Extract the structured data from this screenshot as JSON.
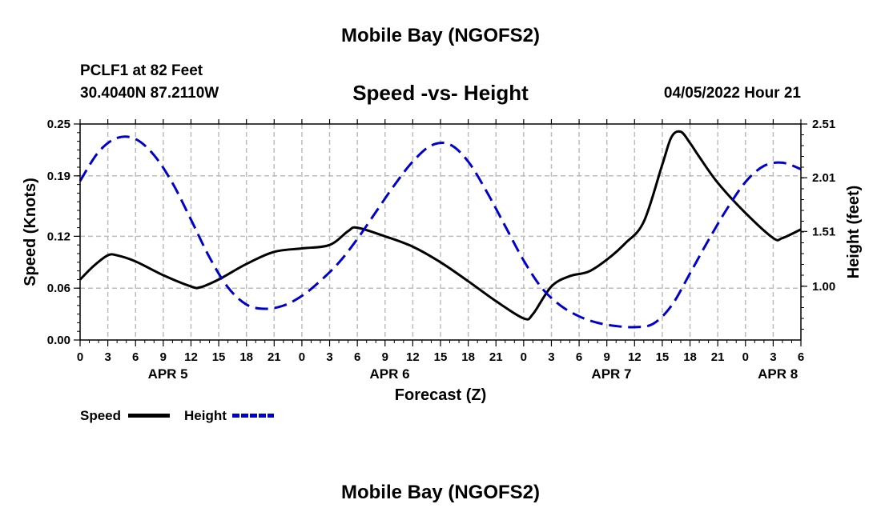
{
  "header": {
    "title": "Mobile Bay (NGOFS2)",
    "station": "PCLF1 at 82 Feet",
    "coords": "30.4040N  87.2110W",
    "subtitle": "Speed -vs- Height",
    "datetime": "04/05/2022 Hour 21",
    "footer_title": "Mobile Bay (NGOFS2)"
  },
  "legend": {
    "speed_label": "Speed",
    "height_label": "Height",
    "speed_color": "#000000",
    "height_color": "#0000cc"
  },
  "chart_data": {
    "type": "line",
    "title": "Speed -vs- Height",
    "xlabel": "Forecast (Z)",
    "ylabel": "Speed (Knots)",
    "y2label": "Height (feet)",
    "xlim": [
      0,
      78
    ],
    "ylim": [
      0,
      0.25
    ],
    "y2lim": [
      0.5,
      2.51
    ],
    "x_ticks": [
      0,
      3,
      6,
      9,
      12,
      15,
      18,
      21,
      24,
      27,
      30,
      33,
      36,
      39,
      42,
      45,
      48,
      51,
      54,
      57,
      60,
      63,
      66,
      69,
      72,
      75,
      78
    ],
    "x_tick_labels": [
      "0",
      "3",
      "6",
      "9",
      "12",
      "15",
      "18",
      "21",
      "0",
      "3",
      "6",
      "9",
      "12",
      "15",
      "18",
      "21",
      "0",
      "3",
      "6",
      "9",
      "12",
      "15",
      "18",
      "21",
      "0",
      "3",
      "6"
    ],
    "date_labels": [
      {
        "x": 9.5,
        "label": "APR 5"
      },
      {
        "x": 33.5,
        "label": "APR 6"
      },
      {
        "x": 57.5,
        "label": "APR 7"
      },
      {
        "x": 75.5,
        "label": "APR 8"
      }
    ],
    "y_ticks": [
      0.0,
      0.06,
      0.12,
      0.19,
      0.25
    ],
    "y_tick_labels": [
      "0.00",
      "0.06",
      "0.12",
      "0.19",
      "0.25"
    ],
    "y2_ticks": [
      1.0,
      1.51,
      2.01,
      2.51
    ],
    "y2_tick_labels": [
      "1.00",
      "1.51",
      "2.01",
      "2.51"
    ],
    "grid": true,
    "series": [
      {
        "name": "Speed",
        "axis": "left",
        "color": "#000000",
        "dash": "solid",
        "x": [
          0,
          1.5,
          3,
          4,
          6,
          9,
          12,
          13,
          15,
          18,
          21,
          24,
          27,
          29,
          30,
          33,
          36,
          39,
          42,
          45,
          48,
          49,
          51,
          53,
          55,
          57,
          59,
          61,
          63,
          64,
          65,
          66,
          67,
          69,
          72,
          75,
          76,
          78
        ],
        "values": [
          0.07,
          0.086,
          0.098,
          0.098,
          0.091,
          0.075,
          0.062,
          0.061,
          0.07,
          0.088,
          0.102,
          0.106,
          0.11,
          0.126,
          0.13,
          0.12,
          0.108,
          0.09,
          0.068,
          0.045,
          0.025,
          0.03,
          0.062,
          0.074,
          0.079,
          0.093,
          0.112,
          0.137,
          0.203,
          0.235,
          0.241,
          0.228,
          0.212,
          0.182,
          0.147,
          0.118,
          0.118,
          0.128
        ]
      },
      {
        "name": "Height",
        "axis": "right",
        "color": "#0000cc",
        "dash": "dashed",
        "x": [
          0,
          2,
          4,
          6,
          8,
          10,
          12,
          14,
          16,
          18,
          20,
          22,
          24,
          26,
          28,
          30,
          32,
          34,
          36,
          38,
          40,
          42,
          44,
          46,
          48,
          50,
          52,
          54,
          56,
          58,
          60,
          62,
          64,
          66,
          68,
          70,
          72,
          74,
          76,
          78
        ],
        "values": [
          1.98,
          2.25,
          2.38,
          2.37,
          2.22,
          1.96,
          1.62,
          1.27,
          0.99,
          0.83,
          0.79,
          0.82,
          0.91,
          1.05,
          1.22,
          1.44,
          1.69,
          1.94,
          2.16,
          2.31,
          2.32,
          2.16,
          1.88,
          1.56,
          1.24,
          0.98,
          0.82,
          0.72,
          0.66,
          0.63,
          0.62,
          0.65,
          0.82,
          1.12,
          1.43,
          1.72,
          1.97,
          2.12,
          2.15,
          2.09
        ]
      }
    ]
  }
}
